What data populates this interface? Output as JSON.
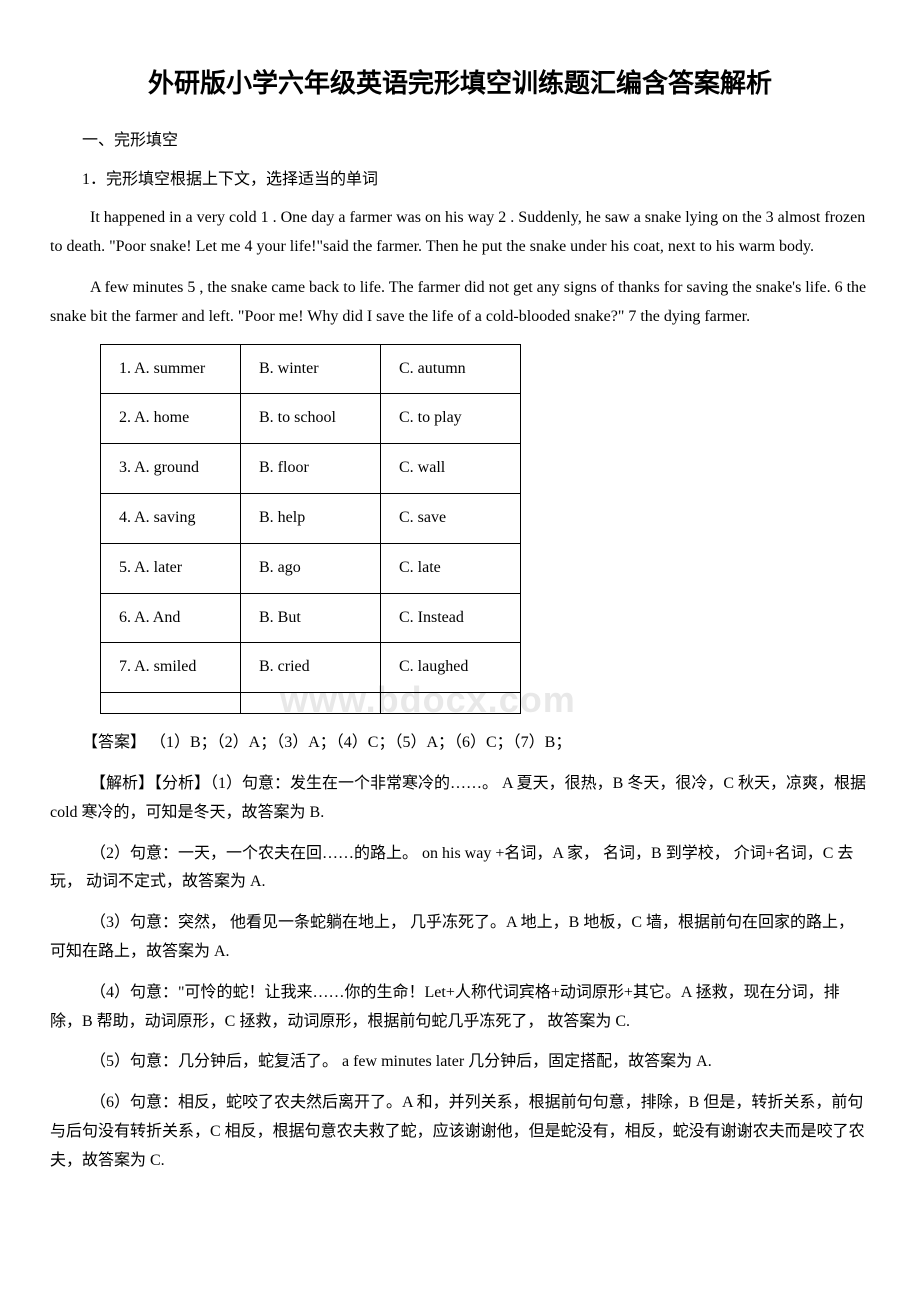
{
  "title": "外研版小学六年级英语完形填空训练题汇编含答案解析",
  "section_header": "一、完形填空",
  "question_header": "1．完形填空根据上下文，选择适当的单词",
  "passage1": "It happened in a very cold  1 . One day a farmer was on his way  2 . Suddenly, he saw a snake lying on the  3  almost frozen to death. \"Poor snake! Let me  4  your life!\"said the farmer. Then he put the snake under his coat, next to his warm body.",
  "passage2": "A few minutes  5 , the snake came back to life. The farmer did not get any signs of thanks for saving the snake's life.  6  the snake bit the farmer and left. \"Poor me! Why did I save the life of a cold-blooded snake?\"  7  the dying farmer.",
  "options": [
    [
      "1. A. summer",
      "B. winter",
      "C. autumn"
    ],
    [
      "2. A. home",
      "B. to school",
      "C. to play"
    ],
    [
      "3. A. ground",
      "B. floor",
      "C. wall"
    ],
    [
      "4. A. saving",
      "B. help",
      "C. save"
    ],
    [
      "5. A. later",
      "B. ago",
      "C. late"
    ],
    [
      "6. A. And",
      "B. But",
      "C. Instead"
    ],
    [
      "7. A. smiled",
      "B. cried",
      "C. laughed"
    ],
    [
      "",
      "",
      ""
    ]
  ],
  "answer_key": "【答案】 （1）B；（2）A；（3）A；（4）C；（5）A；（6）C；（7）B；",
  "explanation_header": "【解析】【分析】（1）句意：发生在一个非常寒冷的……。 A 夏天，很热，B 冬天，很冷，C 秋天，凉爽，根据 cold 寒冷的，可知是冬天，故答案为 B.",
  "explanation2": "（2）句意：一天，一个农夫在回……的路上。 on his way +名词，A 家， 名词，B 到学校， 介词+名词，C 去玩， 动词不定式，故答案为 A.",
  "explanation3": "（3）句意：突然， 他看见一条蛇躺在地上， 几乎冻死了。A 地上，B 地板，C 墙，根据前句在回家的路上，可知在路上，故答案为 A.",
  "explanation4": "（4）句意：\"可怜的蛇！让我来……你的生命！Let+人称代词宾格+动词原形+其它。A 拯救，现在分词，排除，B 帮助，动词原形，C 拯救，动词原形，根据前句蛇几乎冻死了， 故答案为 C.",
  "explanation5": "（5）句意：几分钟后，蛇复活了。 a few minutes later 几分钟后，固定搭配，故答案为 A.",
  "explanation6": "（6）句意：相反，蛇咬了农夫然后离开了。A 和，并列关系，根据前句句意，排除，B 但是，转折关系，前句与后句没有转折关系，C 相反，根据句意农夫救了蛇，应该谢谢他，但是蛇没有，相反，蛇没有谢谢农夫而是咬了农夫，故答案为 C.",
  "watermark_text": "www.bdocx.com"
}
